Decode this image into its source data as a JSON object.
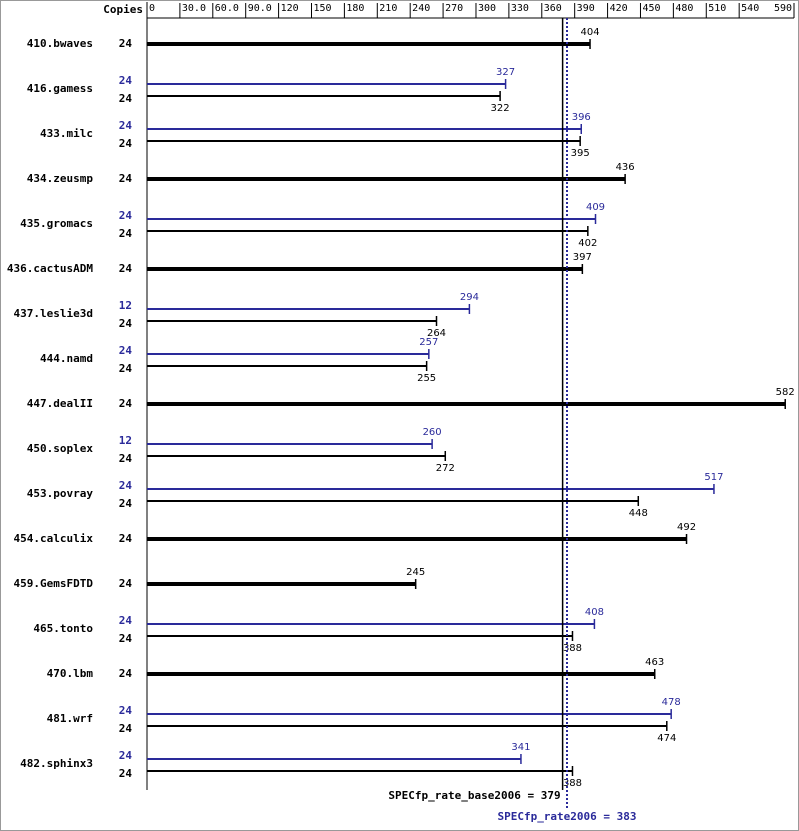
{
  "chart_data": {
    "type": "bar",
    "orientation": "horizontal",
    "copies_label": "Copies",
    "categories": [
      "410.bwaves",
      "416.gamess",
      "433.milc",
      "434.zeusmp",
      "435.gromacs",
      "436.cactusADM",
      "437.leslie3d",
      "444.namd",
      "447.dealII",
      "450.soplex",
      "453.povray",
      "454.calculix",
      "459.GemsFDTD",
      "465.tonto",
      "470.lbm",
      "481.wrf",
      "482.sphinx3"
    ],
    "series": [
      {
        "color": "#2a2a9a",
        "copies": [
          null,
          24,
          24,
          null,
          24,
          null,
          12,
          24,
          null,
          12,
          24,
          null,
          null,
          24,
          null,
          24,
          24
        ],
        "values": [
          null,
          327,
          396,
          null,
          409,
          null,
          294,
          257,
          null,
          260,
          517,
          null,
          null,
          408,
          null,
          478,
          341
        ]
      },
      {
        "color": "#000000",
        "copies": [
          24,
          24,
          24,
          24,
          24,
          24,
          24,
          24,
          24,
          24,
          24,
          24,
          24,
          24,
          24,
          24,
          24
        ],
        "values": [
          404,
          322,
          395,
          436,
          402,
          397,
          264,
          255,
          582,
          272,
          448,
          492,
          245,
          388,
          463,
          474,
          388
        ]
      }
    ],
    "xlim": [
      0,
      590
    ],
    "xticks": [
      0,
      {
        "value": 30,
        "label": "30.0"
      },
      {
        "value": 60,
        "label": "60.0"
      },
      {
        "value": 90,
        "label": "90.0"
      },
      120,
      150,
      180,
      210,
      240,
      270,
      300,
      330,
      360,
      390,
      420,
      450,
      480,
      510,
      540,
      590
    ],
    "reference_lines": [
      {
        "label": "SPECfp_rate_base2006 = 379",
        "value": 379,
        "color": "#000000",
        "style": "solid"
      },
      {
        "label": "SPECfp_rate2006 = 383",
        "value": 383,
        "color": "#2a2a9a",
        "style": "dotted"
      }
    ]
  }
}
